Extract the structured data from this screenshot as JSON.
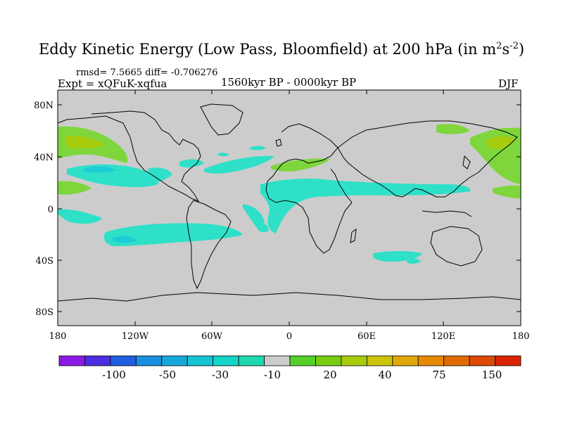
{
  "title": {
    "main": "Eddy Kinetic Energy (Low Pass, Bloomfield) at 200 hPa (in m",
    "sup1": "2",
    "mid": "s",
    "sup2": "-2",
    "end": ")"
  },
  "stats": "rmsd= 7.5665 diff= -0.706276",
  "expt": "Expt = xQFuK-xqfua",
  "period": "1560kyr BP - 0000kyr BP",
  "season": "DJF",
  "lat_labels": [
    "80N",
    "40N",
    "0",
    "40S",
    "80S"
  ],
  "lon_labels": [
    "180",
    "120W",
    "60W",
    "0",
    "60E",
    "120E",
    "180"
  ],
  "colorbar": {
    "labels": [
      "-100",
      "-50",
      "-30",
      "-10",
      "20",
      "40",
      "75",
      "150"
    ],
    "colors": [
      "#8C1AE6",
      "#4B2EE0",
      "#1F5FE0",
      "#1A8FE0",
      "#17A8D8",
      "#16C4D4",
      "#15D4C8",
      "#1ED9B0",
      "#CCCCCC",
      "#55D028",
      "#7ACC12",
      "#A6CB0C",
      "#CCC409",
      "#E0A806",
      "#E68A05",
      "#E06A04",
      "#DC4A04",
      "#D82404"
    ]
  },
  "colors": {
    "land_bg": "#CCCCCC",
    "positive_light": "#7ED63C",
    "positive_mid": "#A6CB0C",
    "negative_light": "#2EE0C8",
    "negative_mid": "#1ACCD4"
  }
}
